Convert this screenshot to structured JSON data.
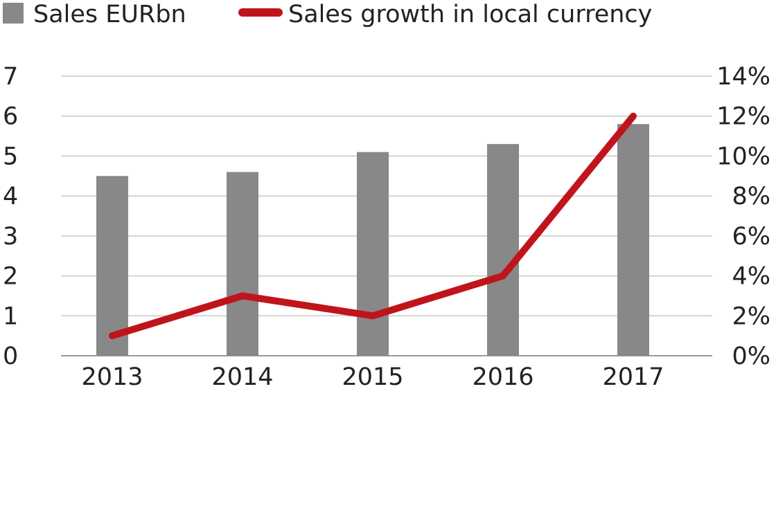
{
  "chart_data": {
    "type": "bar",
    "categories": [
      "2013",
      "2014",
      "2015",
      "2016",
      "2017"
    ],
    "series": [
      {
        "name": "Sales EURbn",
        "type": "bar",
        "axis": "left",
        "color": "#888888",
        "values": [
          4.5,
          4.6,
          5.1,
          5.3,
          5.8
        ]
      },
      {
        "name": "Sales growth in local currency",
        "type": "line",
        "axis": "right",
        "color": "#c0141b",
        "values": [
          1.0,
          3.0,
          2.0,
          4.0,
          12.0
        ]
      }
    ],
    "y_left": {
      "min": 0,
      "max": 7,
      "ticks": [
        "0",
        "1",
        "2",
        "3",
        "4",
        "5",
        "6",
        "7"
      ]
    },
    "y_right": {
      "min": 0,
      "max": 14,
      "ticks": [
        "0%",
        "2%",
        "4%",
        "6%",
        "8%",
        "10%",
        "12%",
        "14%"
      ]
    },
    "grid": true,
    "legend": "top-left"
  }
}
